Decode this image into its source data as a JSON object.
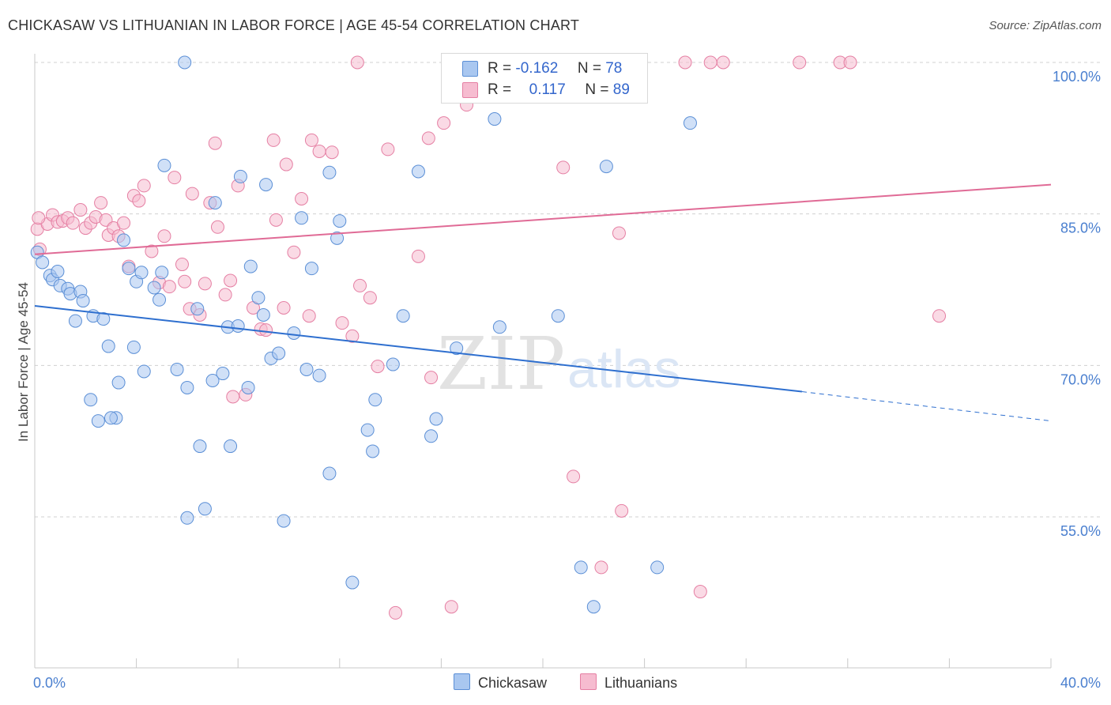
{
  "header": {
    "title": "CHICKASAW VS LITHUANIAN IN LABOR FORCE | AGE 45-54 CORRELATION CHART",
    "source": "Source: ZipAtlas.com"
  },
  "legend": {
    "r_label": "R =",
    "n_label": "N =",
    "rows": [
      {
        "r": "-0.162",
        "n": "78"
      },
      {
        "r": "0.117",
        "n": "89"
      }
    ]
  },
  "bottom_legend": [
    "Chickasaw",
    "Lithuanians"
  ],
  "watermark": {
    "zip": "ZIP",
    "atlas": "atlas"
  },
  "colors": {
    "blue_fill": "#a9c7f0",
    "blue_stroke": "#5b8fd6",
    "blue_line": "#2e6fcf",
    "pink_fill": "#f6bcd0",
    "pink_stroke": "#e57fa3",
    "pink_line": "#e06b96",
    "tick_text": "#4a7fcf",
    "grid": "#d0d0d0"
  },
  "chart_data": {
    "type": "scatter",
    "title": "CHICKASAW VS LITHUANIAN IN LABOR FORCE | AGE 45-54 CORRELATION CHART",
    "xlabel": "",
    "ylabel": "In Labor Force | Age 45-54",
    "xlim": [
      0,
      40
    ],
    "ylim": [
      38,
      102
    ],
    "x_tick_labels": [
      "0.0%",
      "40.0%"
    ],
    "y_ticks": [
      55,
      70,
      85,
      100
    ],
    "y_tick_labels": [
      "55.0%",
      "70.0%",
      "85.0%",
      "100.0%"
    ],
    "grid": "horizontal dashed",
    "legend_position": "top-center",
    "series": [
      {
        "name": "Chickasaw",
        "r": -0.162,
        "n": 78,
        "trend": {
          "x0": 0,
          "y0": 75.9,
          "x1": 30.2,
          "y1": 67.4,
          "dashed_to_x": 40,
          "dashed_to_y": 64.5
        },
        "points": [
          [
            0.1,
            81.2
          ],
          [
            0.3,
            80.2
          ],
          [
            0.6,
            78.9
          ],
          [
            0.7,
            78.5
          ],
          [
            0.9,
            79.3
          ],
          [
            1.0,
            77.9
          ],
          [
            1.3,
            77.6
          ],
          [
            1.4,
            77.1
          ],
          [
            1.8,
            77.3
          ],
          [
            1.9,
            76.4
          ],
          [
            1.6,
            74.4
          ],
          [
            2.3,
            74.9
          ],
          [
            2.7,
            74.6
          ],
          [
            2.9,
            71.9
          ],
          [
            3.2,
            64.8
          ],
          [
            3.0,
            64.8
          ],
          [
            2.2,
            66.6
          ],
          [
            2.5,
            64.5
          ],
          [
            3.3,
            68.3
          ],
          [
            3.7,
            79.6
          ],
          [
            3.5,
            82.4
          ],
          [
            4.0,
            78.3
          ],
          [
            3.9,
            71.8
          ],
          [
            4.3,
            69.4
          ],
          [
            4.2,
            79.2
          ],
          [
            4.7,
            77.7
          ],
          [
            4.9,
            76.5
          ],
          [
            5.0,
            79.2
          ],
          [
            5.1,
            89.8
          ],
          [
            5.6,
            69.6
          ],
          [
            6.0,
            67.8
          ],
          [
            6.4,
            75.6
          ],
          [
            6.5,
            62.0
          ],
          [
            6.0,
            54.9
          ],
          [
            6.7,
            55.8
          ],
          [
            7.0,
            68.5
          ],
          [
            7.1,
            86.1
          ],
          [
            7.4,
            69.2
          ],
          [
            7.6,
            73.8
          ],
          [
            7.7,
            62.0
          ],
          [
            8.0,
            73.9
          ],
          [
            8.1,
            88.7
          ],
          [
            8.4,
            67.8
          ],
          [
            8.5,
            79.8
          ],
          [
            8.8,
            76.7
          ],
          [
            9.0,
            75.0
          ],
          [
            9.1,
            87.9
          ],
          [
            9.3,
            70.7
          ],
          [
            9.6,
            71.2
          ],
          [
            9.8,
            54.6
          ],
          [
            10.2,
            73.2
          ],
          [
            10.7,
            69.6
          ],
          [
            10.9,
            79.6
          ],
          [
            11.2,
            69.0
          ],
          [
            10.5,
            84.6
          ],
          [
            11.6,
            89.1
          ],
          [
            11.9,
            82.6
          ],
          [
            12.0,
            84.3
          ],
          [
            11.6,
            59.3
          ],
          [
            12.5,
            48.5
          ],
          [
            13.1,
            63.6
          ],
          [
            13.3,
            61.5
          ],
          [
            13.4,
            66.6
          ],
          [
            14.1,
            70.1
          ],
          [
            14.5,
            74.9
          ],
          [
            15.1,
            89.2
          ],
          [
            15.6,
            63.0
          ],
          [
            15.8,
            64.7
          ],
          [
            16.6,
            71.7
          ],
          [
            18.1,
            94.4
          ],
          [
            18.3,
            73.8
          ],
          [
            20.6,
            74.9
          ],
          [
            21.5,
            50.0
          ],
          [
            22.0,
            46.1
          ],
          [
            22.5,
            89.7
          ],
          [
            24.5,
            50.0
          ],
          [
            25.8,
            94.0
          ],
          [
            5.9,
            100.0
          ]
        ]
      },
      {
        "name": "Lithuanians",
        "r": 0.117,
        "n": 89,
        "trend": {
          "x0": 0,
          "y0": 81.0,
          "x1": 40,
          "y1": 87.9
        },
        "points": [
          [
            0.1,
            83.5
          ],
          [
            0.2,
            81.5
          ],
          [
            0.5,
            84.0
          ],
          [
            0.7,
            84.9
          ],
          [
            0.9,
            84.2
          ],
          [
            1.1,
            84.3
          ],
          [
            1.3,
            84.6
          ],
          [
            1.5,
            84.1
          ],
          [
            1.8,
            85.4
          ],
          [
            2.0,
            83.6
          ],
          [
            2.2,
            84.1
          ],
          [
            2.4,
            84.7
          ],
          [
            2.6,
            86.1
          ],
          [
            2.8,
            84.4
          ],
          [
            2.9,
            82.9
          ],
          [
            3.1,
            83.6
          ],
          [
            3.3,
            82.8
          ],
          [
            3.5,
            84.1
          ],
          [
            3.7,
            79.8
          ],
          [
            3.9,
            86.8
          ],
          [
            4.1,
            86.3
          ],
          [
            4.3,
            87.8
          ],
          [
            4.6,
            81.3
          ],
          [
            4.9,
            78.2
          ],
          [
            5.1,
            82.8
          ],
          [
            5.3,
            77.8
          ],
          [
            5.5,
            88.6
          ],
          [
            5.8,
            80.0
          ],
          [
            5.9,
            78.3
          ],
          [
            6.1,
            75.6
          ],
          [
            6.2,
            87.0
          ],
          [
            6.5,
            75.0
          ],
          [
            6.7,
            78.1
          ],
          [
            6.9,
            86.1
          ],
          [
            7.1,
            92.0
          ],
          [
            7.2,
            83.7
          ],
          [
            7.5,
            77.0
          ],
          [
            7.7,
            78.4
          ],
          [
            7.8,
            66.9
          ],
          [
            8.0,
            87.8
          ],
          [
            8.3,
            67.1
          ],
          [
            8.6,
            75.7
          ],
          [
            8.9,
            73.6
          ],
          [
            9.1,
            73.5
          ],
          [
            9.4,
            92.3
          ],
          [
            9.5,
            84.4
          ],
          [
            9.8,
            75.7
          ],
          [
            9.9,
            89.9
          ],
          [
            10.2,
            81.2
          ],
          [
            10.5,
            86.5
          ],
          [
            10.8,
            74.9
          ],
          [
            10.9,
            92.3
          ],
          [
            11.2,
            91.2
          ],
          [
            11.7,
            91.1
          ],
          [
            12.1,
            74.2
          ],
          [
            12.5,
            72.9
          ],
          [
            12.8,
            77.9
          ],
          [
            13.2,
            76.7
          ],
          [
            13.5,
            69.9
          ],
          [
            13.9,
            91.4
          ],
          [
            14.2,
            45.5
          ],
          [
            15.1,
            80.8
          ],
          [
            15.5,
            92.5
          ],
          [
            15.6,
            68.8
          ],
          [
            16.1,
            94.0
          ],
          [
            16.4,
            46.1
          ],
          [
            17.0,
            95.8
          ],
          [
            17.4,
            100.0
          ],
          [
            19.0,
            100.0
          ],
          [
            20.5,
            100.0
          ],
          [
            20.8,
            89.6
          ],
          [
            21.2,
            59.0
          ],
          [
            22.3,
            50.0
          ],
          [
            23.0,
            83.1
          ],
          [
            23.1,
            55.6
          ],
          [
            23.8,
            100.0
          ],
          [
            25.6,
            100.0
          ],
          [
            26.2,
            47.6
          ],
          [
            27.1,
            100.0
          ],
          [
            30.1,
            100.0
          ],
          [
            31.7,
            100.0
          ],
          [
            32.1,
            100.0
          ],
          [
            35.6,
            74.9
          ],
          [
            12.7,
            100.0
          ],
          [
            18.7,
            100.0
          ],
          [
            19.3,
            100.0
          ],
          [
            22.5,
            100.0
          ],
          [
            0.15,
            84.6
          ],
          [
            26.6,
            100.0
          ]
        ]
      }
    ]
  }
}
